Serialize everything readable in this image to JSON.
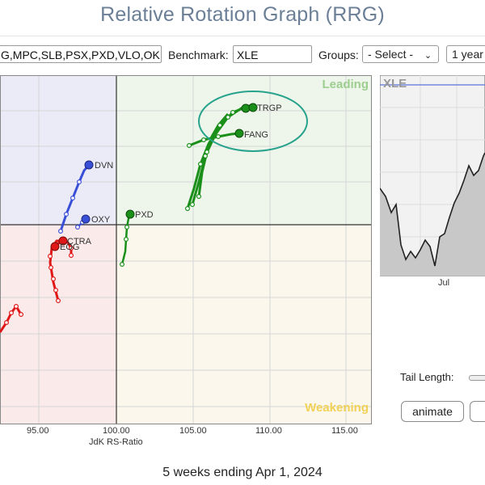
{
  "title": "Relative Rotation Graph (RRG)",
  "toolbar": {
    "symbols_value": "G,MPC,SLB,PSX,PXD,VLO,OK",
    "benchmark_label": "Benchmark:",
    "benchmark_value": "XLE",
    "groups_label": "Groups:",
    "groups_value": "- Select -",
    "period_value": "1 year"
  },
  "quadrants": {
    "leading": "Leading",
    "weakening": "Weakening"
  },
  "axis": {
    "x_label": "JdK RS-Ratio",
    "x_ticks": [
      "95.00",
      "100.00",
      "105.00",
      "110.00",
      "115.00"
    ]
  },
  "tickers": {
    "trgp": "TRGP",
    "fang": "FANG",
    "dvn": "DVN",
    "oxy": "OXY",
    "pxd": "PXD",
    "ctra": "CTRA",
    "eog": "EOG"
  },
  "colors": {
    "leading": "#eef5ea",
    "weakening": "#fbf7ec",
    "lagging": "#fbeaea",
    "improving": "#ebebf7",
    "green": "#1a8f1a",
    "blue": "#3a4fd8",
    "red": "#e01818",
    "highlight": "#27a38d"
  },
  "mini_chart": {
    "symbol": "XLE",
    "x_tick": "Jul"
  },
  "controls": {
    "tail_length_label": "Tail Length:",
    "animate_label": "animate"
  },
  "footer": "5 weeks ending Apr 1, 2024"
}
